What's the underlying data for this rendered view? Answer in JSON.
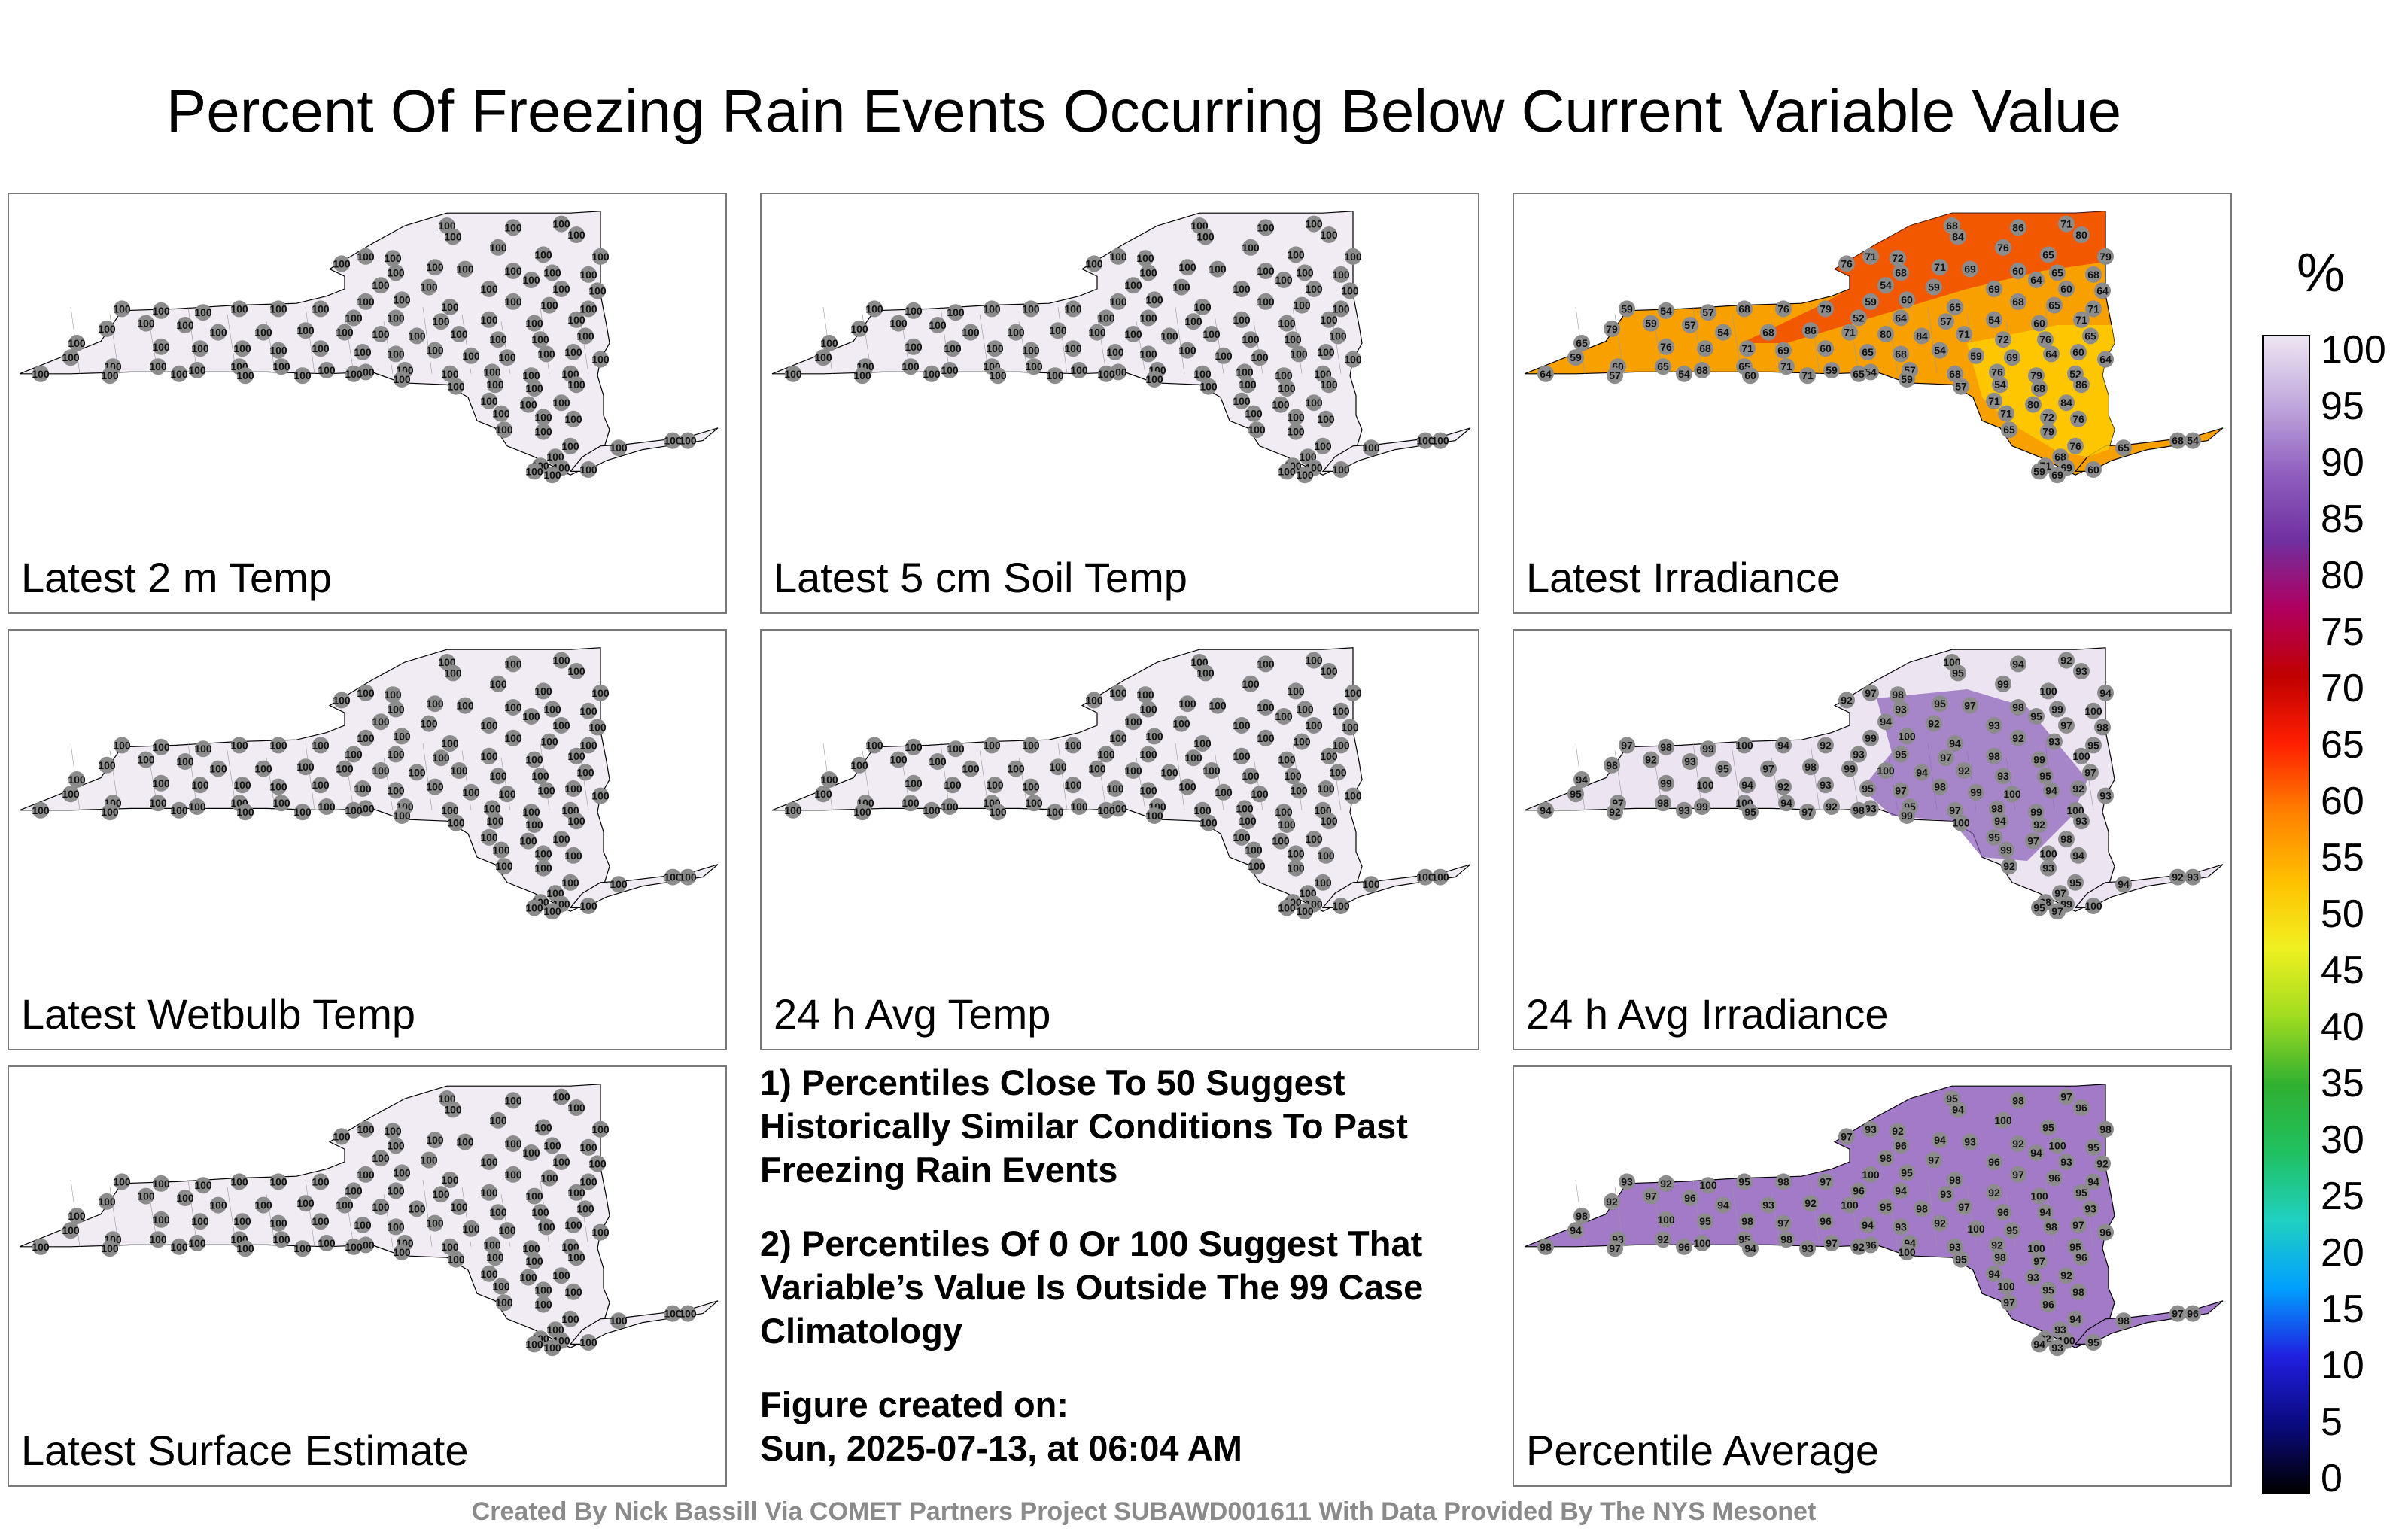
{
  "title": "Percent Of Freezing Rain Events Occurring Below Current Variable Value",
  "colorbar": {
    "unit": "%",
    "ticks": [
      "100",
      "95",
      "90",
      "85",
      "80",
      "75",
      "70",
      "65",
      "60",
      "55",
      "50",
      "45",
      "40",
      "35",
      "30",
      "25",
      "20",
      "15",
      "10",
      "5",
      "0"
    ],
    "stops": [
      "#000000",
      "#0a0a80",
      "#2020e0",
      "#00a0ff",
      "#20d0c0",
      "#20c060",
      "#30b030",
      "#a0dc20",
      "#f0f020",
      "#ffc000",
      "#ff8000",
      "#ff2000",
      "#c00000",
      "#b00060",
      "#7030a0",
      "#9060c0",
      "#c0a8dc",
      "#ede6f2"
    ]
  },
  "panels": [
    {
      "label": "Latest 2 m Temp",
      "fill": "#f1ecf4",
      "station_values": [
        100
      ]
    },
    {
      "label": "Latest 5 cm Soil Temp",
      "fill": "#f1ecf4",
      "station_values": [
        100
      ]
    },
    {
      "label": "Latest Irradiance",
      "fill": "#f7a000",
      "station_values": [
        68,
        86,
        71,
        80,
        84,
        71,
        72,
        76,
        65,
        79,
        76,
        68,
        71,
        69,
        60,
        65,
        68,
        54,
        59,
        69,
        64,
        60,
        64,
        59,
        60,
        65,
        68,
        65,
        71,
        59,
        54,
        57,
        68,
        76,
        79,
        52,
        64,
        57,
        54,
        60,
        71,
        65,
        59,
        57,
        54
      ]
    },
    {
      "label": "Latest Wetbulb Temp",
      "fill": "#f1ecf4",
      "station_values": [
        100
      ]
    },
    {
      "label": "24 h Avg Temp",
      "fill": "#f1ecf4",
      "station_values": [
        100
      ]
    },
    {
      "label": "24 h Avg Irradiance",
      "fill": "#ece5f1",
      "station_values": [
        100,
        94,
        92,
        93,
        95,
        97,
        98,
        99
      ]
    },
    {
      "label": "Latest Surface Estimate",
      "fill": "#f1ecf4",
      "station_values": [
        100
      ]
    },
    {
      "label": "Percentile Average",
      "fill": "#a27ac8",
      "station_values": [
        95,
        98,
        97,
        96,
        94,
        93,
        92,
        100
      ]
    }
  ],
  "notes": {
    "line1": "1) Percentiles Close To 50 Suggest Historically Similar Conditions To Past Freezing Rain Events",
    "line2": "2) Percentiles Of 0 Or 100 Suggest That Variable’s Value Is Outside The 99 Case Climatology",
    "line3a": "Figure created on:",
    "line3b": "Sun, 2025-07-13, at 06:04 AM"
  },
  "footer": "Created By Nick Bassill Via COMET Partners Project SUBAWD001611 With Data Provided By The NYS Mesonet"
}
